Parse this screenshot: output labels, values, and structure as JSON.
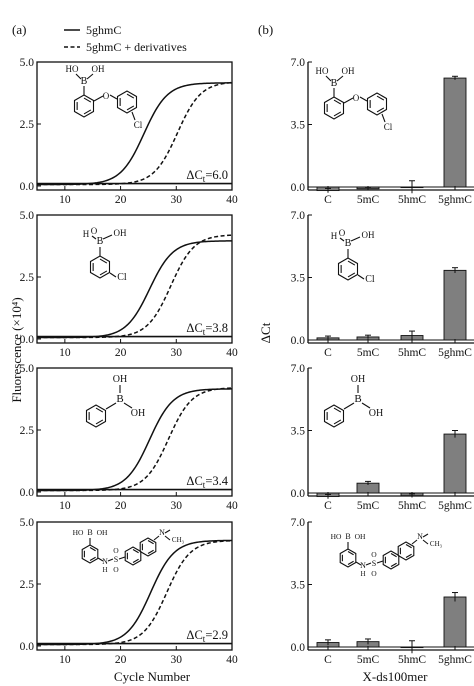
{
  "panel_labels": [
    "(a)",
    "(b)"
  ],
  "legend": {
    "solid": "5ghmC",
    "dashed": "5ghmC + derivatives"
  },
  "shared_labels": {
    "a_ylabel": "Fluorescence (×10⁴)",
    "a_xlabel": "Cycle Number",
    "b_ylabel": "ΔCt",
    "b_xlabel": "X-ds100mer"
  },
  "molecule_text": {
    "B": "B",
    "OH": "OH",
    "HO": "HO",
    "O": "O",
    "Cl": "Cl",
    "S": "S",
    "N": "N",
    "H": "H",
    "CH3": "CH₃"
  },
  "colors": {
    "bar": "#7f7f7f",
    "line": "#111111"
  },
  "chart_data": [
    {
      "type": "line",
      "panel": "a",
      "title": "",
      "xlim": [
        5,
        40
      ],
      "ylim": [
        0,
        5
      ],
      "xticks": [
        "10",
        "20",
        "30",
        "40"
      ],
      "yticks": [
        "0.0",
        "2.5",
        "5.0"
      ],
      "series": [
        {
          "name": "5ghmC",
          "style": "solid",
          "midpoint": 24.2,
          "max": 4.1
        },
        {
          "name": "5ghmC + derivatives",
          "style": "dashed",
          "midpoint": 30.2,
          "max": 4.15
        }
      ],
      "annotation": "ΔCt=6.0"
    },
    {
      "type": "line",
      "panel": "a",
      "title": "",
      "xlim": [
        5,
        40
      ],
      "ylim": [
        0,
        5
      ],
      "xticks": [
        "10",
        "20",
        "30",
        "40"
      ],
      "yticks": [
        "0.0",
        "2.5",
        "5.0"
      ],
      "series": [
        {
          "name": "5ghmC",
          "style": "solid",
          "midpoint": 25.2,
          "max": 3.9
        },
        {
          "name": "5ghmC + derivatives",
          "style": "dashed",
          "midpoint": 29.0,
          "max": 4.15
        }
      ],
      "annotation": "ΔCt=3.8"
    },
    {
      "type": "line",
      "panel": "a",
      "title": "",
      "xlim": [
        5,
        40
      ],
      "ylim": [
        0,
        5
      ],
      "xticks": [
        "10",
        "20",
        "30",
        "40"
      ],
      "yticks": [
        "0.0",
        "2.5",
        "5.0"
      ],
      "series": [
        {
          "name": "5ghmC",
          "style": "solid",
          "midpoint": 25.2,
          "max": 4.1
        },
        {
          "name": "5ghmC + derivatives",
          "style": "dashed",
          "midpoint": 28.6,
          "max": 4.15
        }
      ],
      "annotation": "ΔCt=3.4"
    },
    {
      "type": "line",
      "panel": "a",
      "title": "",
      "xlim": [
        5,
        40
      ],
      "ylim": [
        0,
        5
      ],
      "xticks": [
        "10",
        "20",
        "30",
        "40"
      ],
      "yticks": [
        "0.0",
        "2.5",
        "5.0"
      ],
      "series": [
        {
          "name": "5ghmC",
          "style": "solid",
          "midpoint": 25.4,
          "max": 4.2
        },
        {
          "name": "5ghmC + derivatives",
          "style": "dashed",
          "midpoint": 28.3,
          "max": 4.2
        }
      ],
      "annotation": "ΔCt=2.9"
    },
    {
      "type": "bar",
      "panel": "b",
      "categories": [
        "C",
        "5mC",
        "5hmC",
        "5ghmC"
      ],
      "values": [
        -0.2,
        -0.1,
        0,
        6.1
      ],
      "errors": [
        0.12,
        0.08,
        0.35,
        0.1
      ],
      "ylim": [
        -0.15,
        7
      ],
      "yticks": [
        "0.0",
        "3.5",
        "7.0"
      ]
    },
    {
      "type": "bar",
      "panel": "b",
      "categories": [
        "C",
        "5mC",
        "5hmC",
        "5ghmC"
      ],
      "values": [
        0.12,
        0.17,
        0.25,
        3.9
      ],
      "errors": [
        0.1,
        0.1,
        0.25,
        0.15
      ],
      "ylim": [
        -0.15,
        7
      ],
      "yticks": [
        "0.0",
        "3.5",
        "7.0"
      ]
    },
    {
      "type": "bar",
      "panel": "b",
      "categories": [
        "C",
        "5mC",
        "5hmC",
        "5ghmC"
      ],
      "values": [
        -0.2,
        0.55,
        -0.15,
        3.3
      ],
      "errors": [
        0.12,
        0.1,
        0.1,
        0.2
      ],
      "ylim": [
        -0.15,
        7
      ],
      "yticks": [
        "0.0",
        "3.5",
        "7.0"
      ]
    },
    {
      "type": "bar",
      "panel": "b",
      "categories": [
        "C",
        "5mC",
        "5hmC",
        "5ghmC"
      ],
      "values": [
        0.25,
        0.3,
        0,
        2.8
      ],
      "errors": [
        0.15,
        0.15,
        0.35,
        0.25
      ],
      "ylim": [
        -0.15,
        7
      ],
      "yticks": [
        "0.0",
        "3.5",
        "7.0"
      ]
    }
  ]
}
